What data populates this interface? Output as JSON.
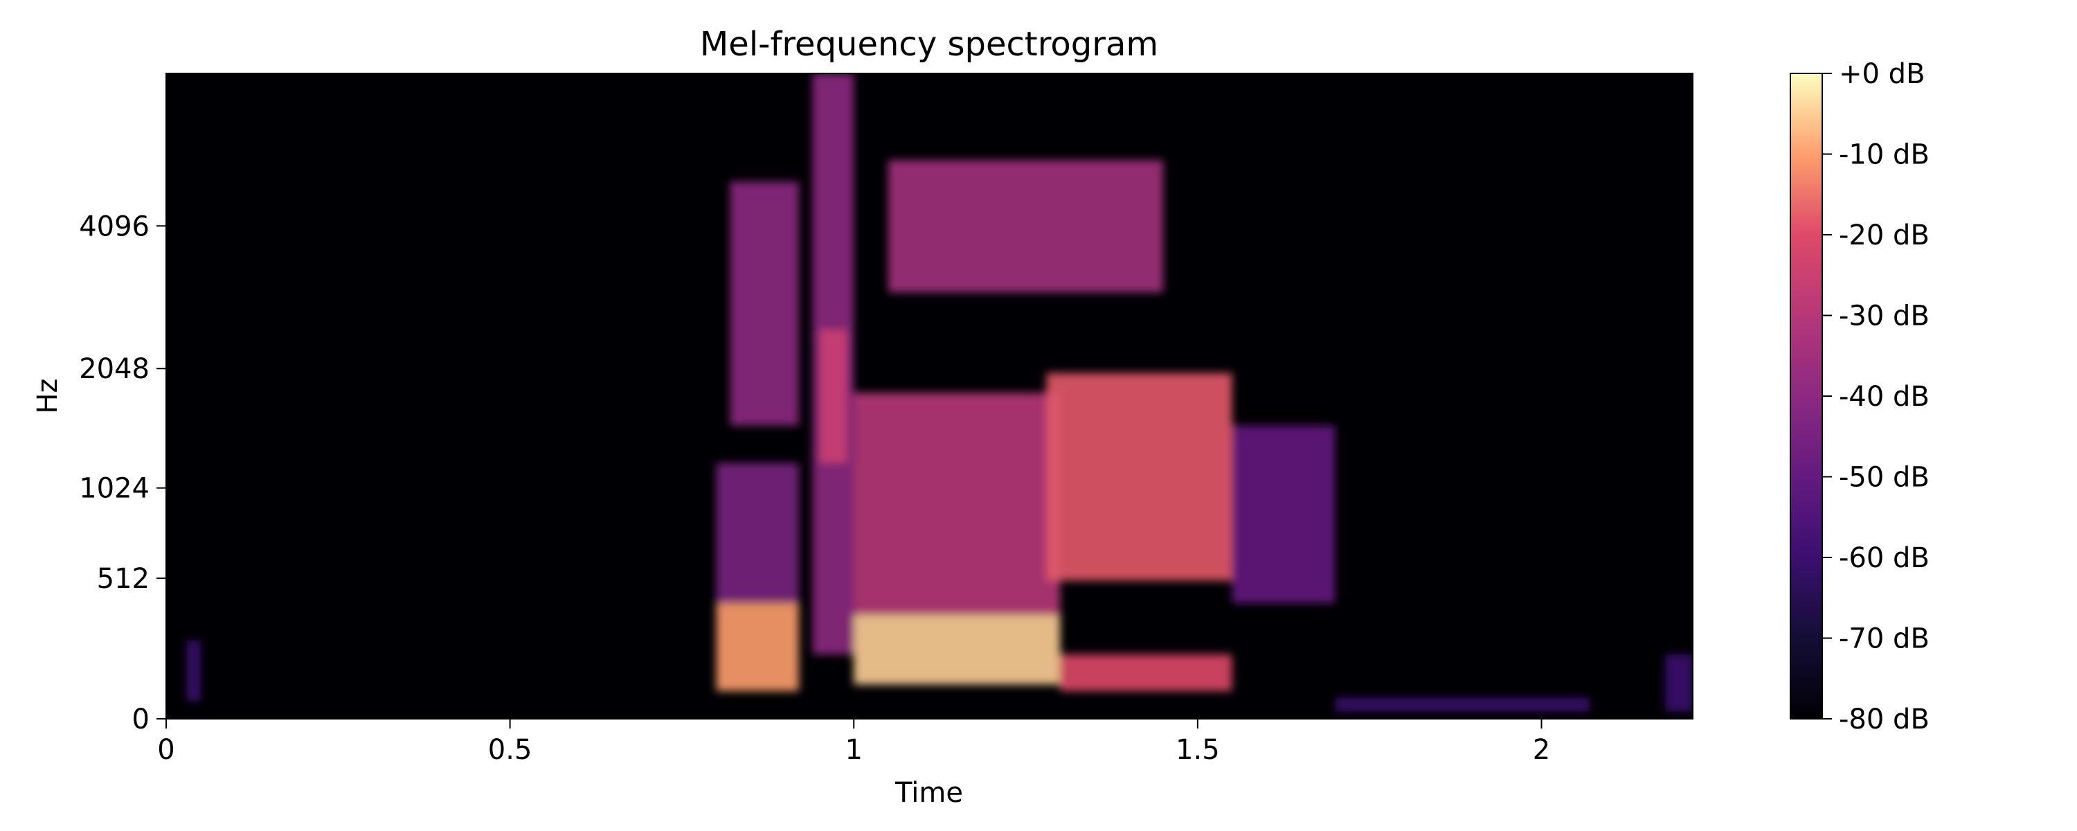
{
  "chart_data": {
    "type": "heatmap",
    "title": "Mel-frequency spectrogram",
    "xlabel": "Time",
    "ylabel": "Hz",
    "xlim": [
      0,
      2.22
    ],
    "ylim": [
      0,
      8000
    ],
    "y_scale": "mel",
    "x_ticks": [
      {
        "value": 0,
        "label": "0"
      },
      {
        "value": 0.5,
        "label": "0.5"
      },
      {
        "value": 1,
        "label": "1"
      },
      {
        "value": 1.5,
        "label": "1.5"
      },
      {
        "value": 2,
        "label": "2"
      }
    ],
    "y_ticks": [
      {
        "value": 0,
        "label": "0"
      },
      {
        "value": 512,
        "label": "512"
      },
      {
        "value": 1024,
        "label": "1024"
      },
      {
        "value": 2048,
        "label": "2048"
      },
      {
        "value": 4096,
        "label": "4096"
      }
    ],
    "colormap": "magma",
    "colorbar": {
      "range": [
        -80,
        0
      ],
      "ticks": [
        {
          "value": 0,
          "label": "+0 dB"
        },
        {
          "value": -10,
          "label": "-10 dB"
        },
        {
          "value": -20,
          "label": "-20 dB"
        },
        {
          "value": -30,
          "label": "-30 dB"
        },
        {
          "value": -40,
          "label": "-40 dB"
        },
        {
          "value": -50,
          "label": "-50 dB"
        },
        {
          "value": -60,
          "label": "-60 dB"
        },
        {
          "value": -70,
          "label": "-70 dB"
        },
        {
          "value": -80,
          "label": "-80 dB"
        }
      ]
    },
    "energy_regions": [
      {
        "t0": 0.03,
        "t1": 0.05,
        "f0": 50,
        "f1": 250,
        "db": -60
      },
      {
        "t0": 0.8,
        "t1": 0.92,
        "f0": 80,
        "f1": 400,
        "db": -10
      },
      {
        "t0": 0.8,
        "t1": 0.92,
        "f0": 400,
        "f1": 1200,
        "db": -45
      },
      {
        "t0": 0.82,
        "t1": 0.92,
        "f0": 1500,
        "f1": 5000,
        "db": -40
      },
      {
        "t0": 0.94,
        "t1": 1.0,
        "f0": 200,
        "f1": 8000,
        "db": -40
      },
      {
        "t0": 0.95,
        "t1": 0.99,
        "f0": 1200,
        "f1": 2500,
        "db": -25
      },
      {
        "t0": 1.0,
        "t1": 1.3,
        "f0": 100,
        "f1": 350,
        "db": -5
      },
      {
        "t0": 1.0,
        "t1": 1.3,
        "f0": 350,
        "f1": 1800,
        "db": -30
      },
      {
        "t0": 1.05,
        "t1": 1.45,
        "f0": 3000,
        "f1": 5500,
        "db": -35
      },
      {
        "t0": 1.28,
        "t1": 1.55,
        "f0": 500,
        "f1": 2000,
        "db": -18
      },
      {
        "t0": 1.3,
        "t1": 1.55,
        "f0": 80,
        "f1": 200,
        "db": -20
      },
      {
        "t0": 1.55,
        "t1": 1.7,
        "f0": 400,
        "f1": 1500,
        "db": -50
      },
      {
        "t0": 1.7,
        "t1": 2.07,
        "f0": 20,
        "f1": 60,
        "db": -60
      },
      {
        "t0": 2.18,
        "t1": 2.22,
        "f0": 20,
        "f1": 200,
        "db": -60
      }
    ]
  }
}
